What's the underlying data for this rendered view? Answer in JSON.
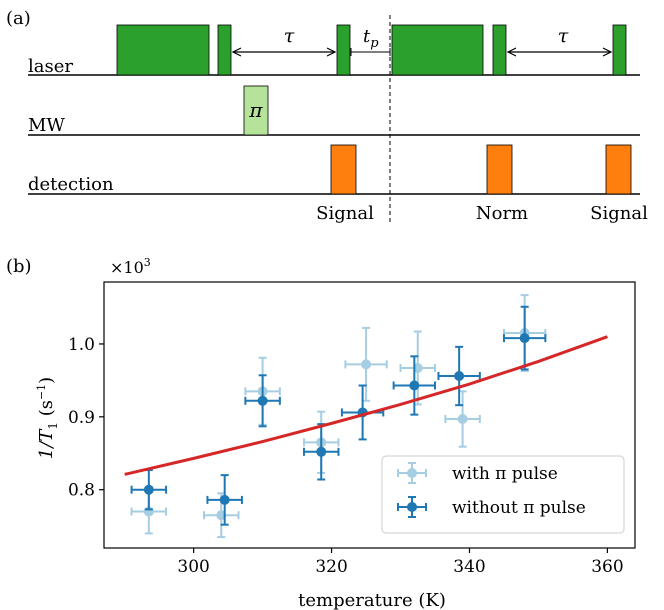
{
  "panel_a": {
    "label": "(a)",
    "rows": [
      "laser",
      "MW",
      "detection"
    ],
    "tau": "τ",
    "tp": "t",
    "tp_sub": "p",
    "pi": "π",
    "signal_1": "Signal",
    "norm": "Norm",
    "signal_2": "Signal",
    "colors": {
      "laser": "#2ca02c",
      "mw": "#b5e39a",
      "detection": "#ff7f0e"
    }
  },
  "chart_data": {
    "type": "scatter",
    "panel_label": "(b)",
    "multiplier": "×10",
    "multiplier_exp": "3",
    "xlabel": "temperature (K)",
    "ylabel": "1/T",
    "ylabel_sub": "1",
    "ylabel_unit": " (s",
    "ylabel_unit_exp": "−1",
    "ylabel_close": ")",
    "xlim": [
      287,
      364
    ],
    "ylim": [
      0.72,
      1.085
    ],
    "xticks": [
      300,
      320,
      340,
      360
    ],
    "xtick_labels": [
      "300",
      "320",
      "340",
      "360"
    ],
    "yticks": [
      0.8,
      0.9,
      1.0
    ],
    "ytick_labels": [
      "0.8",
      "0.9",
      "1.0"
    ],
    "legend_position": "lower-right",
    "series": [
      {
        "name": "with π pulse",
        "color": "#a6cee3",
        "points": [
          {
            "x": 293.5,
            "y": 0.77,
            "xerr": 2.5,
            "yerr": 0.03
          },
          {
            "x": 304.0,
            "y": 0.765,
            "xerr": 2.5,
            "yerr": 0.03
          },
          {
            "x": 310.0,
            "y": 0.935,
            "xerr": 2.5,
            "yerr": 0.046
          },
          {
            "x": 318.5,
            "y": 0.865,
            "xerr": 2.5,
            "yerr": 0.042
          },
          {
            "x": 325.0,
            "y": 0.972,
            "xerr": 3.0,
            "yerr": 0.05
          },
          {
            "x": 332.5,
            "y": 0.967,
            "xerr": 2.5,
            "yerr": 0.05
          },
          {
            "x": 339.0,
            "y": 0.897,
            "xerr": 2.5,
            "yerr": 0.038
          },
          {
            "x": 348.0,
            "y": 1.015,
            "xerr": 3.0,
            "yerr": 0.052
          }
        ]
      },
      {
        "name": "without π pulse",
        "color": "#1f77b4",
        "points": [
          {
            "x": 293.5,
            "y": 0.8,
            "xerr": 2.5,
            "yerr": 0.027
          },
          {
            "x": 304.5,
            "y": 0.786,
            "xerr": 2.5,
            "yerr": 0.034
          },
          {
            "x": 310.0,
            "y": 0.922,
            "xerr": 2.5,
            "yerr": 0.035
          },
          {
            "x": 318.5,
            "y": 0.852,
            "xerr": 2.5,
            "yerr": 0.038
          },
          {
            "x": 324.5,
            "y": 0.906,
            "xerr": 3.0,
            "yerr": 0.037
          },
          {
            "x": 332.0,
            "y": 0.943,
            "xerr": 3.0,
            "yerr": 0.04
          },
          {
            "x": 338.5,
            "y": 0.956,
            "xerr": 3.0,
            "yerr": 0.04
          },
          {
            "x": 348.0,
            "y": 1.008,
            "xerr": 3.0,
            "yerr": 0.043
          }
        ]
      }
    ],
    "fit": {
      "color": "#d62728",
      "x": [
        290,
        300,
        310,
        320,
        330,
        340,
        350,
        360
      ],
      "y": [
        0.821,
        0.843,
        0.866,
        0.891,
        0.917,
        0.945,
        0.976,
        1.01
      ]
    }
  }
}
